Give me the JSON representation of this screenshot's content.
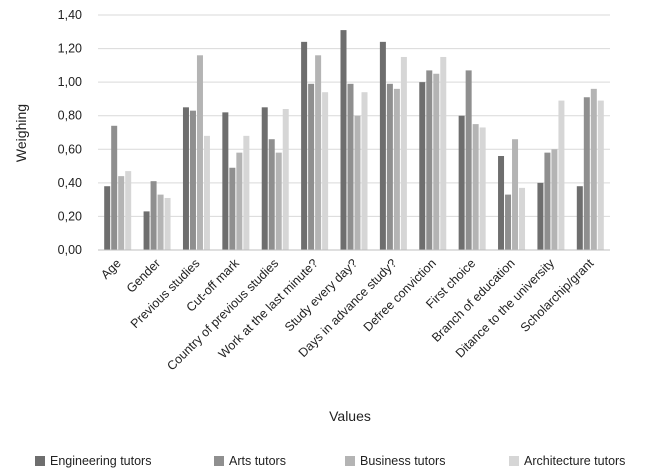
{
  "chart_data": {
    "type": "bar",
    "title": "",
    "xlabel": "Values",
    "ylabel": "Weighing",
    "ylim": [
      0,
      1.4
    ],
    "yticks": [
      "0,00",
      "0,20",
      "0,40",
      "0,60",
      "0,80",
      "1,00",
      "1,20",
      "1,40"
    ],
    "grid": true,
    "legend_position": "bottom",
    "categories": [
      "Age",
      "Gender",
      "Previous studies",
      "Cut-off mark",
      "Country of previous studies",
      "Work at the last minute?",
      "Study every day?",
      "Days in advance study?",
      "Defree conviction",
      "First choice",
      "Branch of education",
      "Ditance to the university",
      "Scholarchip/grant"
    ],
    "series": [
      {
        "name": "Engineering tutors",
        "color": "#6e6e6e",
        "values": [
          0.38,
          0.23,
          0.85,
          0.82,
          0.85,
          1.24,
          1.31,
          1.24,
          1.0,
          0.8,
          0.56,
          0.4,
          0.38
        ]
      },
      {
        "name": "Arts tutors",
        "color": "#8f8f8f",
        "values": [
          0.74,
          0.41,
          0.83,
          0.49,
          0.66,
          0.99,
          0.99,
          0.99,
          1.07,
          1.07,
          0.33,
          0.58,
          0.91
        ]
      },
      {
        "name": "Business tutors",
        "color": "#b4b4b4",
        "values": [
          0.44,
          0.33,
          1.16,
          0.58,
          0.58,
          1.16,
          0.8,
          0.96,
          1.05,
          0.75,
          0.66,
          0.6,
          0.96
        ]
      },
      {
        "name": "Architecture tutors",
        "color": "#d6d6d6",
        "values": [
          0.47,
          0.31,
          0.68,
          0.68,
          0.84,
          0.94,
          0.94,
          1.15,
          1.15,
          0.73,
          0.37,
          0.89,
          0.89
        ]
      }
    ]
  }
}
